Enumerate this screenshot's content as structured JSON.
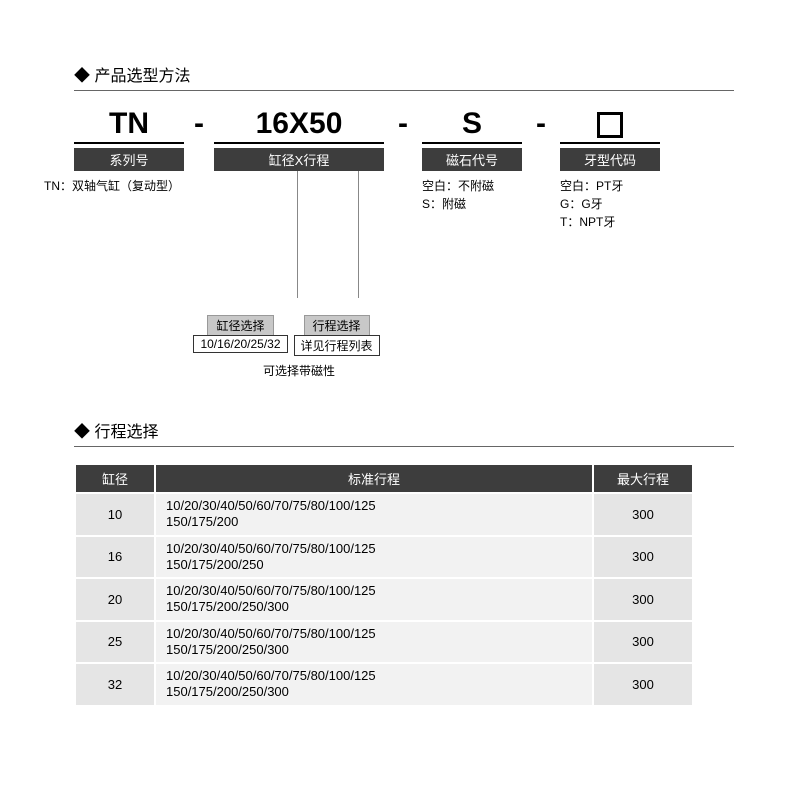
{
  "sections": {
    "selection_title": "产品选型方法",
    "stroke_title": "行程选择"
  },
  "model": {
    "series": {
      "code": "TN",
      "label": "系列号",
      "desc": "TN：双轴气缸（复动型）"
    },
    "bore_stroke": {
      "code": "16X50",
      "label": "缸径X行程",
      "bore_callout_label": "缸径选择",
      "bore_callout_value": "10/16/20/25/32",
      "stroke_callout_label": "行程选择",
      "stroke_callout_value": "详见行程列表",
      "note": "可选择带磁性"
    },
    "magnet": {
      "code": "S",
      "label": "磁石代号",
      "desc1": "空白：不附磁",
      "desc2": "S：附磁"
    },
    "thread": {
      "label": "牙型代码",
      "desc1": "空白：PT牙",
      "desc2": "G：G牙",
      "desc3": "T：NPT牙"
    },
    "dash": "-"
  },
  "stroke_table": {
    "columns": {
      "bore": "缸径",
      "std": "标准行程",
      "max": "最大行程"
    },
    "rows": [
      {
        "bore": "10",
        "std": "10/20/30/40/50/60/70/75/80/100/125\n150/175/200",
        "max": "300"
      },
      {
        "bore": "16",
        "std": "10/20/30/40/50/60/70/75/80/100/125\n150/175/200/250",
        "max": "300"
      },
      {
        "bore": "20",
        "std": "10/20/30/40/50/60/70/75/80/100/125\n150/175/200/250/300",
        "max": "300"
      },
      {
        "bore": "25",
        "std": "10/20/30/40/50/60/70/75/80/100/125\n150/175/200/250/300",
        "max": "300"
      },
      {
        "bore": "32",
        "std": "10/20/30/40/50/60/70/75/80/100/125\n150/175/200/250/300",
        "max": "300"
      }
    ]
  },
  "colors": {
    "badge_bg": "#3d3d3d",
    "callout_bg": "#c8c8c8",
    "row_alt_bg": "#e5e5e5",
    "row_bg": "#f2f2f2"
  }
}
